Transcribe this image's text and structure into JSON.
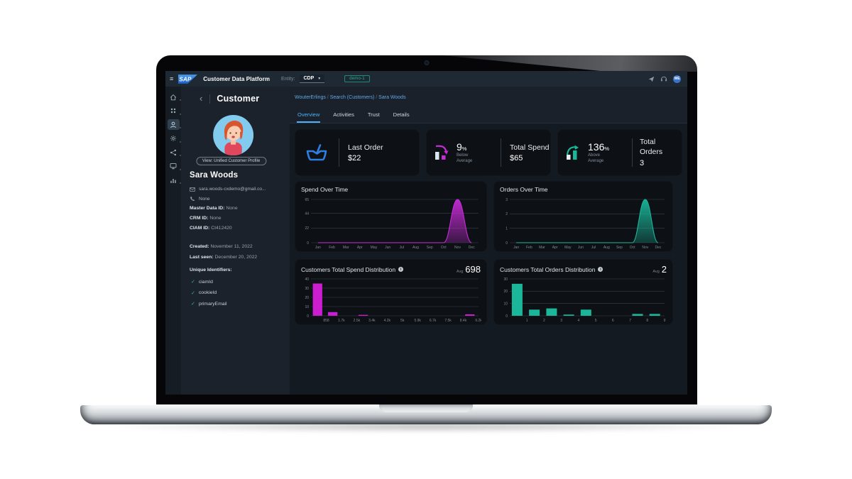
{
  "topbar": {
    "menu_icon": "≡",
    "brand": "SAP",
    "title": "Customer Data Platform",
    "entity_label": "Entity:",
    "entity_value": "CDP",
    "env_badge": "demo-1",
    "avatar_initials": "WE"
  },
  "rail": {
    "items": [
      {
        "icon": "home-icon",
        "active": false
      },
      {
        "icon": "apps-icon",
        "active": false
      },
      {
        "icon": "customer-icon",
        "active": true
      },
      {
        "icon": "gear-icon",
        "active": false
      },
      {
        "icon": "share-icon",
        "active": false
      },
      {
        "icon": "monitor-icon",
        "active": false
      },
      {
        "icon": "chart-icon",
        "active": false
      }
    ]
  },
  "sidebar": {
    "back_icon": "‹",
    "title": "Customer",
    "view_button": "View: Unified Customer Profile",
    "name": "Sara Woods",
    "email": "sara.woods-cxdemo@gmail.co...",
    "phone": "None",
    "fields": [
      {
        "label": "Master Data ID:",
        "value": "None"
      },
      {
        "label": "CRM ID:",
        "value": "None"
      },
      {
        "label": "CIAM ID:",
        "value": "CI412420"
      }
    ],
    "dates": [
      {
        "label": "Created:",
        "value": "November 11, 2022"
      },
      {
        "label": "Last seen:",
        "value": "December 20, 2022"
      }
    ],
    "unique_identifiers_label": "Unique Identifiers:",
    "identifiers": [
      "ciamId",
      "cookieId",
      "primaryEmail"
    ]
  },
  "breadcrumb": [
    "WouterErlings",
    "Search (Customers)",
    "Sara Woods"
  ],
  "tabs": [
    {
      "label": "Overview",
      "active": true
    },
    {
      "label": "Activities",
      "active": false
    },
    {
      "label": "Trust",
      "active": false
    },
    {
      "label": "Details",
      "active": false
    }
  ],
  "kpis": {
    "last_order": {
      "label": "Last Order",
      "value": "$22"
    },
    "total_spend": {
      "pct": "9",
      "unit": "%",
      "trend": "Below Average",
      "label": "Total Spend",
      "value": "$65"
    },
    "total_orders": {
      "pct": "136",
      "unit": "%",
      "trend": "Above Average",
      "label": "Total Orders",
      "value": "3"
    }
  },
  "chart_data": [
    {
      "type": "area",
      "title": "Spend Over Time",
      "x": [
        "Jan",
        "Feb",
        "Mar",
        "Apr",
        "May",
        "Jun",
        "Jul",
        "Aug",
        "Sep",
        "Oct",
        "Nov",
        "Dec"
      ],
      "values": [
        0,
        0,
        0,
        0,
        0,
        0,
        0,
        0,
        0,
        0,
        65,
        0
      ],
      "yticks": [
        0,
        22,
        44,
        65
      ],
      "ylim": [
        0,
        65
      ],
      "color": "#c62bd6"
    },
    {
      "type": "area",
      "title": "Orders Over Time",
      "x": [
        "Jan",
        "Feb",
        "Mar",
        "Apr",
        "May",
        "Jun",
        "Jul",
        "Aug",
        "Sep",
        "Oct",
        "Nov",
        "Dec"
      ],
      "values": [
        0,
        0,
        0,
        0,
        0,
        0,
        0,
        0,
        0,
        0,
        3,
        0
      ],
      "yticks": [
        0,
        1,
        2,
        3
      ],
      "ylim": [
        0,
        3
      ],
      "color": "#1ab79a"
    },
    {
      "type": "bar",
      "title": "Customers Total Spend Distribution",
      "avg_label": "Avg",
      "avg": "698",
      "x": [
        "858",
        "1.7k",
        "2.5k",
        "3.4k",
        "4.2k",
        "5k",
        "5.9k",
        "6.7k",
        "7.5k",
        "8.4k",
        "9.2k"
      ],
      "values": [
        35,
        4,
        0,
        1,
        0,
        0,
        0,
        0,
        0,
        0,
        1.5
      ],
      "yticks": [
        0,
        10,
        20,
        30,
        40
      ],
      "ylim": [
        0,
        40
      ],
      "color": "#cb1ed1"
    },
    {
      "type": "bar",
      "title": "Customers Total Orders Distribution",
      "avg_label": "Avg",
      "avg": "2",
      "x": [
        "1",
        "2",
        "3",
        "4",
        "5",
        "6",
        "7",
        "8",
        "9"
      ],
      "values": [
        26,
        5,
        6,
        1,
        5,
        0,
        0,
        1.5,
        1.5
      ],
      "yticks": [
        0,
        10,
        20,
        30
      ],
      "ylim": [
        0,
        30
      ],
      "color": "#1ab79a"
    }
  ],
  "colors": {
    "accent_blue": "#4db1ff",
    "magenta": "#c62bd6",
    "teal": "#1ab79a",
    "link": "#5ea9e8"
  }
}
